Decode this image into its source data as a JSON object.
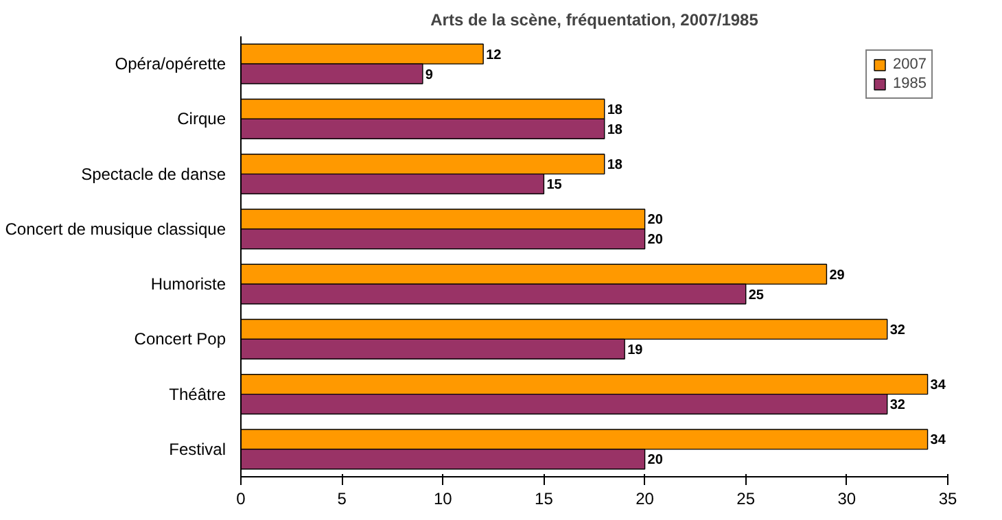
{
  "chart_data": {
    "type": "bar",
    "orientation": "horizontal",
    "title": "Arts de la scène, fréquentation, 2007/1985",
    "categories": [
      "Opéra/opérette",
      "Cirque",
      "Spectacle de danse",
      "Concert de musique classique",
      "Humoriste",
      "Concert Pop",
      "Théâtre",
      "Festival"
    ],
    "series": [
      {
        "name": "2007",
        "color": "#ff9900",
        "values": [
          12,
          18,
          18,
          20,
          29,
          32,
          34,
          34
        ]
      },
      {
        "name": "1985",
        "color": "#993366",
        "values": [
          9,
          18,
          15,
          20,
          25,
          19,
          32,
          20
        ]
      }
    ],
    "xlim": [
      0,
      35
    ],
    "xticks": [
      0,
      5,
      10,
      15,
      20,
      25,
      30,
      35
    ],
    "grid": false,
    "legend": "top right",
    "data_labels": true
  }
}
